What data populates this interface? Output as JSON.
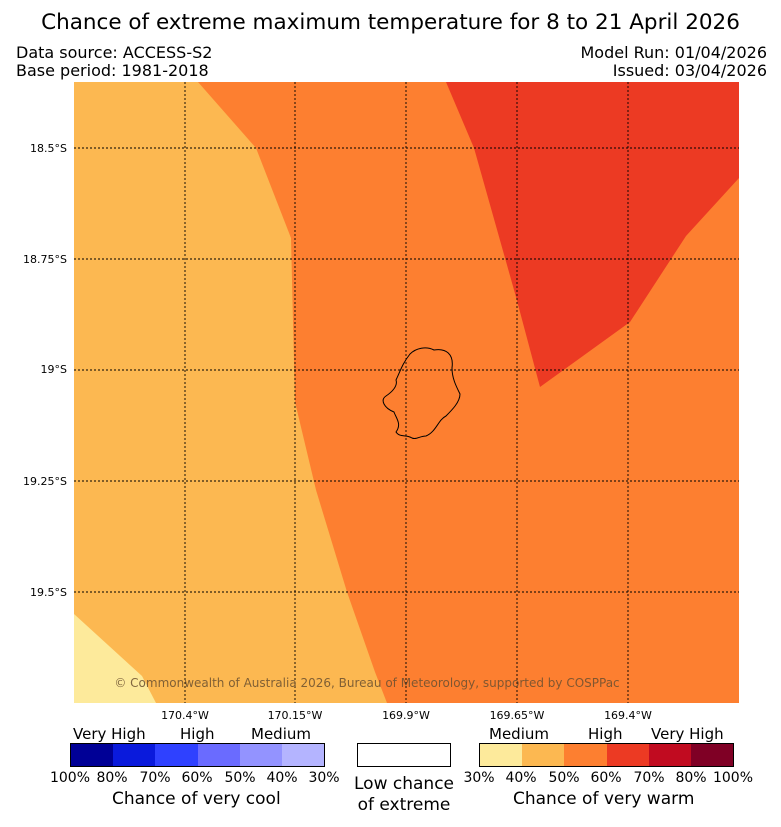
{
  "title": "Chance of extreme maximum temperature for 8 to 21 April 2026",
  "header": {
    "data_source": "Data source: ACCESS-S2",
    "base_period": "Base period: 1981-2018",
    "model_run": "Model Run: 01/04/2026",
    "issued": "Issued: 03/04/2026"
  },
  "map": {
    "lat_labels": [
      "18.5°S",
      "18.75°S",
      "19°S",
      "19.25°S",
      "19.5°S"
    ],
    "lon_labels": [
      "170.4°W",
      "170.15°W",
      "169.9°W",
      "169.65°W",
      "169.4°W"
    ],
    "copyright": "© Commonwealth of Australia 2026, Bureau of Meteorology, supported by COSPPac",
    "region_colors": {
      "medium_30_40": "#fdea9b",
      "medium_40_50": "#fcb851",
      "high_50_60": "#fd7f30",
      "high_60_70": "#ec3a23"
    }
  },
  "legend": {
    "cool": {
      "levels": [
        "Very High",
        "High",
        "Medium"
      ],
      "ticks": [
        "100%",
        "80%",
        "70%",
        "60%",
        "50%",
        "40%",
        "30%"
      ],
      "colors": [
        "#000096",
        "#0a1adc",
        "#2f41ff",
        "#6a6bff",
        "#9393ff",
        "#b4b4ff"
      ],
      "caption": "Chance of very cool"
    },
    "low": {
      "caption_line1": "Low chance",
      "caption_line2": "of extreme"
    },
    "warm": {
      "levels": [
        "Medium",
        "High",
        "Very High"
      ],
      "ticks": [
        "30%",
        "40%",
        "50%",
        "60%",
        "70%",
        "80%",
        "100%"
      ],
      "colors": [
        "#fdea9b",
        "#fcb851",
        "#fd7f30",
        "#ec3a23",
        "#c10b20",
        "#7f0025"
      ],
      "caption": "Chance of very warm"
    }
  }
}
